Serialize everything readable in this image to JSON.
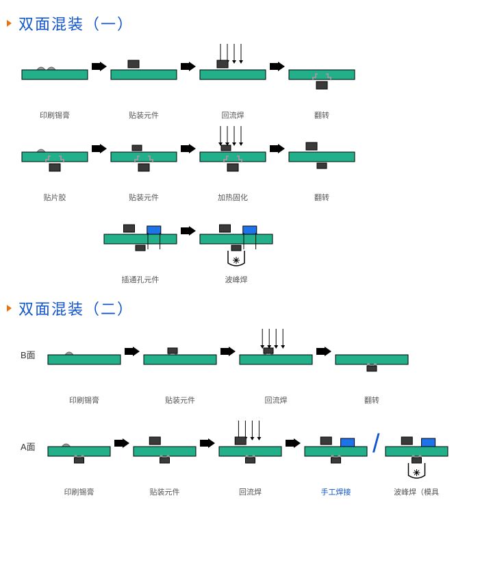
{
  "colors": {
    "pcb": "#21b08a",
    "pcb_stroke": "#000000",
    "chip_dark": "#3a3a3a",
    "chip_gray": "#9a9a9a",
    "chip_blue": "#1e73e8",
    "paste_gray": "#999999",
    "arrow": "#000000",
    "title": "#1155cc",
    "bullet": "#e8720c",
    "text": "#555555",
    "blue_text": "#1155cc"
  },
  "sizes": {
    "pcb_w": 95,
    "pcb_w_sm": 85,
    "pcb_h": 14,
    "chip_w": 14,
    "chip_h": 10
  },
  "section1": {
    "title": "双面混装（一）",
    "row1": [
      {
        "label": "印刷锡膏",
        "paste_top": true
      },
      {
        "label": "贴装元件",
        "chip_top_legs": true
      },
      {
        "label": "回流焊",
        "chip_top_legs": true,
        "heat_arrows": true
      },
      {
        "label": "翻转",
        "chip_bot_legs": true
      }
    ],
    "row2": [
      {
        "label": "贴片胶",
        "paste_top_small": true,
        "chip_bot_legs": true
      },
      {
        "label": "贴装元件",
        "chip_top_small": true,
        "chip_bot_legs": true
      },
      {
        "label": "加热固化",
        "chip_top_small": true,
        "chip_bot_legs": true,
        "heat_arrows": true
      },
      {
        "label": "翻转",
        "chip_top_legs": true,
        "chip_bot_small": true
      }
    ],
    "row3": [
      {
        "label": "插通孔元件",
        "chip_top_legs": true,
        "blue_top": true,
        "chip_bot_small": true,
        "tht_leads": true
      },
      {
        "label": "波峰焊",
        "chip_top_legs": true,
        "blue_top": true,
        "chip_bot_small": true,
        "tht_leads": true,
        "wave_solder": true
      }
    ]
  },
  "section2": {
    "title": "双面混装（二）",
    "rowB_label": "B面",
    "rowB": [
      {
        "label": "印刷锡膏",
        "paste_top_small": true
      },
      {
        "label": "贴装元件",
        "chip_top_small_feet": true
      },
      {
        "label": "回流焊",
        "chip_top_small_feet": true,
        "heat_arrows": true
      },
      {
        "label": "翻转",
        "chip_bot_small_feet": true
      }
    ],
    "rowA_label": "A面",
    "rowA": [
      {
        "label": "印刷锡膏",
        "paste_top_small": true,
        "chip_bot_small_feet": true
      },
      {
        "label": "贴装元件",
        "chip_top_legs": true,
        "chip_bot_small_feet": true
      },
      {
        "label": "回流焊",
        "chip_top_legs": true,
        "chip_bot_small_feet": true,
        "heat_arrows": true
      },
      {
        "label": "手工焊接",
        "chip_top_legs": true,
        "blue_top": true,
        "chip_bot_small_feet": true,
        "blue_label": true
      }
    ],
    "rowA_alt": {
      "label": "波峰焊（模具",
      "chip_top_legs": true,
      "blue_top": true,
      "chip_bot_small_feet": true,
      "wave_solder": true
    }
  }
}
